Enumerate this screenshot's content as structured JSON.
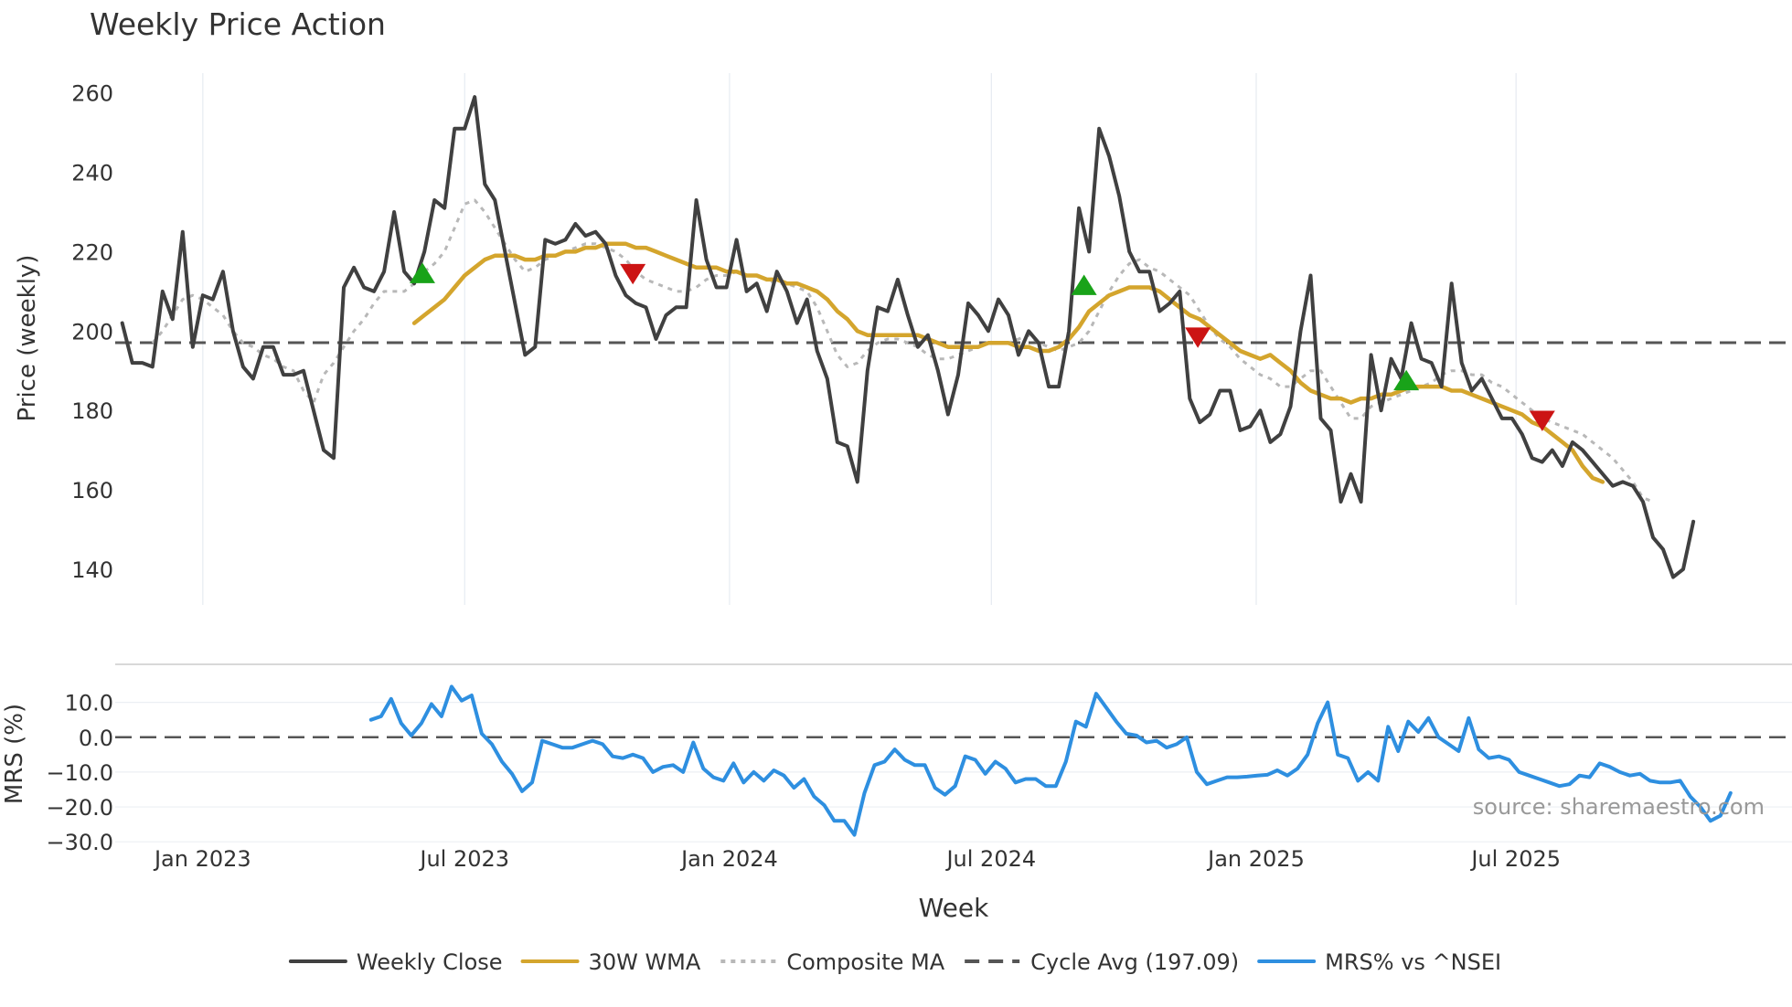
{
  "chart_data": {
    "type": "line",
    "title": "Weekly Price Action",
    "xlabel": "Week",
    "source_note": "source: sharemaestro.com",
    "x_tick_labels": [
      "Jan 2023",
      "Jul 2023",
      "Jan 2024",
      "Jul 2024",
      "Jan 2025",
      "Jul 2025"
    ],
    "x_tick_positions": [
      0.0,
      26.0,
      52.3,
      78.3,
      104.6,
      130.4
    ],
    "x_range": [
      -8.7,
      157.8
    ],
    "price_panel": {
      "ylabel": "Price (weekly)",
      "ylim": [
        131,
        265
      ],
      "y_ticks": [
        140,
        160,
        180,
        200,
        220,
        240,
        260
      ],
      "y_tick_labels": [
        "140",
        "160",
        "180",
        "200",
        "220",
        "240",
        "260"
      ],
      "series": [
        {
          "name": "Weekly Close",
          "style": "solid",
          "color": "#404040",
          "start_index": -8,
          "values": [
            202,
            192,
            192,
            191,
            210,
            203,
            225,
            196,
            209,
            208,
            215,
            200,
            191,
            188,
            196,
            196,
            189,
            189,
            190,
            180,
            170,
            168,
            211,
            216,
            211,
            210,
            215,
            230,
            215,
            212,
            220,
            233,
            231,
            251,
            251,
            259,
            237,
            233,
            220,
            207,
            194,
            196,
            223,
            222,
            223,
            227,
            224,
            225,
            222,
            214,
            209,
            207,
            206,
            198,
            204,
            206,
            206,
            233,
            218,
            211,
            211,
            223,
            210,
            212,
            205,
            215,
            210,
            202,
            208,
            195,
            188,
            172,
            171,
            162,
            190,
            206,
            205,
            213,
            204,
            196,
            199,
            190,
            179,
            189,
            207,
            204,
            200,
            208,
            204,
            194,
            200,
            197,
            186,
            186,
            200,
            231,
            220,
            251,
            244,
            234,
            220,
            215,
            215,
            205,
            207,
            210,
            183,
            177,
            179,
            185,
            185,
            175,
            176,
            180,
            172,
            174,
            181,
            200,
            214,
            178,
            175,
            157,
            164,
            157,
            194,
            180,
            193,
            188,
            202,
            193,
            192,
            186,
            212,
            192,
            185,
            188,
            183,
            178,
            178,
            174,
            168,
            167,
            170,
            166,
            172,
            170,
            167,
            164,
            161,
            162,
            161,
            157,
            148,
            145,
            138,
            140,
            152
          ]
        },
        {
          "name": "30W WMA",
          "style": "solid",
          "color": "#D4A52D",
          "start_index": 21,
          "values": [
            202,
            204,
            206,
            208,
            211,
            214,
            216,
            218,
            219,
            219,
            219,
            218,
            218,
            219,
            219,
            220,
            220,
            221,
            221,
            222,
            222,
            222,
            221,
            221,
            220,
            219,
            218,
            217,
            216,
            216,
            216,
            215,
            215,
            214,
            214,
            213,
            213,
            212,
            212,
            211,
            210,
            208,
            205,
            203,
            200,
            199,
            199,
            199,
            199,
            199,
            199,
            198,
            197,
            196,
            196,
            196,
            196,
            197,
            197,
            197,
            196,
            196,
            195,
            195,
            196,
            198,
            201,
            205,
            207,
            209,
            210,
            211,
            211,
            211,
            210,
            208,
            206,
            204,
            203,
            201,
            199,
            197,
            195,
            194,
            193,
            194,
            192,
            190,
            187,
            185,
            184,
            183,
            183,
            182,
            183,
            183,
            184,
            184,
            185,
            186,
            186,
            186,
            186,
            185,
            185,
            184,
            183,
            182,
            181,
            180,
            179,
            177,
            176,
            174,
            172,
            170,
            166,
            163,
            162
          ]
        },
        {
          "name": "Composite MA",
          "style": "dotted",
          "color": "#B8B8B8",
          "start_index": -5,
          "values": [
            197,
            200,
            204,
            208,
            209,
            208,
            206,
            204,
            200,
            197,
            196,
            194,
            193,
            191,
            190,
            185,
            182,
            189,
            192,
            196,
            200,
            203,
            207,
            210,
            210,
            210,
            212,
            215,
            217,
            220,
            226,
            232,
            233,
            230,
            226,
            222,
            218,
            215,
            216,
            218,
            219,
            220,
            221,
            222,
            222,
            221,
            220,
            218,
            215,
            213,
            212,
            211,
            210,
            210,
            211,
            213,
            214,
            214,
            215,
            214,
            214,
            213,
            212,
            212,
            211,
            210,
            206,
            200,
            194,
            191,
            192,
            195,
            197,
            198,
            198,
            197,
            196,
            194,
            193,
            193,
            194,
            195,
            196,
            197,
            197,
            197,
            198,
            199,
            197,
            196,
            195,
            196,
            197,
            200,
            205,
            210,
            214,
            217,
            218,
            216,
            215,
            213,
            211,
            209,
            205,
            201,
            198,
            196,
            193,
            191,
            189,
            188,
            186,
            186,
            188,
            190,
            190,
            186,
            182,
            178,
            178,
            181,
            182,
            183,
            184,
            185,
            186,
            187,
            189,
            190,
            190,
            189,
            189,
            187,
            186,
            184,
            182,
            180,
            178,
            177,
            176,
            175,
            174,
            172,
            170,
            168,
            165,
            162,
            158,
            157
          ]
        },
        {
          "name": "Cycle Avg (197.09)",
          "style": "dashed",
          "color": "#555555",
          "constant": 197.09
        }
      ],
      "markers": [
        {
          "type": "buy",
          "color": "#19A319",
          "x": 21.8,
          "y": 214.5
        },
        {
          "type": "sell",
          "color": "#CC1414",
          "x": 42.7,
          "y": 214.5
        },
        {
          "type": "buy",
          "color": "#19A319",
          "x": 87.5,
          "y": 211.5
        },
        {
          "type": "sell",
          "color": "#CC1414",
          "x": 98.8,
          "y": 198.5
        },
        {
          "type": "buy",
          "color": "#19A319",
          "x": 119.5,
          "y": 187.5
        },
        {
          "type": "sell",
          "color": "#CC1414",
          "x": 133.0,
          "y": 177.5
        }
      ]
    },
    "mrs_panel": {
      "ylabel": "MRS (%)",
      "ylim": [
        -31,
        17.5
      ],
      "y_ticks": [
        10,
        0,
        -10,
        -20,
        -30
      ],
      "y_tick_labels": [
        "10.0",
        "0.0",
        "−10.0",
        "−20.0",
        "−30.0"
      ],
      "zero_line": 0,
      "series": [
        {
          "name": "MRS% vs ^NSEI",
          "style": "solid",
          "color": "#2E8FE0",
          "start_index": 16.7,
          "values": [
            5,
            6,
            11,
            4,
            0.5,
            4,
            9.5,
            6,
            14.5,
            10.5,
            12,
            1,
            -2,
            -7,
            -10.5,
            -15.5,
            -13,
            -1,
            -2,
            -3,
            -3,
            -2,
            -1,
            -2,
            -5.5,
            -6,
            -5,
            -6,
            -10,
            -8.5,
            -8,
            -10,
            -1.5,
            -9,
            -11.5,
            -12.5,
            -7.5,
            -13,
            -10,
            -12.5,
            -9.5,
            -11,
            -14.5,
            -12,
            -17,
            -19.5,
            -24,
            -24,
            -28,
            -16,
            -8,
            -7,
            -3.5,
            -6.5,
            -8,
            -8,
            -14.5,
            -16.5,
            -14,
            -5.5,
            -6.5,
            -10.5,
            -7,
            -9,
            -13,
            -12,
            -12,
            -14,
            -14,
            -7,
            4.5,
            3,
            12.5,
            8.5,
            4.5,
            1,
            0.5,
            -1.5,
            -1,
            -3,
            -2,
            0,
            -10,
            -13.5,
            -12.5,
            -11.5,
            -11.5,
            -11.3,
            -11,
            -10.8,
            -9.5,
            -11,
            -9,
            -5,
            4,
            10,
            -5,
            -6,
            -12.5,
            -10,
            -12.5,
            3,
            -4,
            4.5,
            1.5,
            5.5,
            0,
            -2,
            -4,
            5.5,
            -3.5,
            -6,
            -5.5,
            -6.5,
            -10,
            -11,
            -12,
            -13,
            -14,
            -13.5,
            -11,
            -11.5,
            -7.5,
            -8.5,
            -10,
            -11,
            -10.5,
            -12.5,
            -13,
            -13,
            -12.5,
            -17,
            -20,
            -24,
            -22.5,
            -16
          ]
        },
        {
          "name": "MRS zero line",
          "style": "dashed",
          "color": "#555555",
          "constant": 0
        }
      ]
    },
    "legend": {
      "placement": "bottom-center",
      "entries": [
        {
          "label": "Weekly Close",
          "style": "solid",
          "color": "#404040"
        },
        {
          "label": "30W WMA",
          "style": "solid",
          "color": "#D4A52D"
        },
        {
          "label": "Composite MA",
          "style": "dotted",
          "color": "#B8B8B8"
        },
        {
          "label": "Cycle Avg (197.09)",
          "style": "dashed",
          "color": "#555555"
        },
        {
          "label": "MRS% vs ^NSEI",
          "style": "solid",
          "color": "#2E8FE0"
        }
      ]
    }
  }
}
